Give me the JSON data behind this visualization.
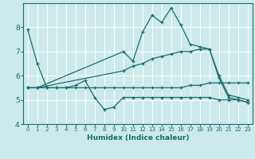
{
  "xlabel": "Humidex (Indice chaleur)",
  "xlim": [
    -0.5,
    23.5
  ],
  "ylim": [
    4,
    9
  ],
  "yticks": [
    4,
    5,
    6,
    7,
    8
  ],
  "xticks": [
    0,
    1,
    2,
    3,
    4,
    5,
    6,
    7,
    8,
    9,
    10,
    11,
    12,
    13,
    14,
    15,
    16,
    17,
    18,
    19,
    20,
    21,
    22,
    23
  ],
  "bg_color": "#cceaea",
  "line_color": "#1a6b6b",
  "grid_color": "#b0d8d8",
  "lines": [
    {
      "x": [
        0,
        1,
        2,
        3,
        4,
        5,
        6,
        7,
        8,
        9,
        10,
        11,
        12,
        13,
        14,
        15,
        16,
        17,
        18,
        19,
        20,
        21,
        22,
        23
      ],
      "y": [
        7.9,
        6.5,
        5.5,
        5.5,
        5.5,
        5.6,
        5.8,
        5.1,
        4.6,
        4.7,
        5.1,
        5.1,
        5.1,
        5.1,
        5.1,
        5.1,
        5.1,
        5.1,
        5.1,
        5.1,
        5.0,
        5.0,
        5.0,
        4.9
      ]
    },
    {
      "x": [
        0,
        1,
        2,
        3,
        4,
        5,
        6,
        7,
        8,
        9,
        10,
        11,
        12,
        13,
        14,
        15,
        16,
        17,
        18,
        19,
        20,
        21,
        22,
        23
      ],
      "y": [
        5.5,
        5.5,
        5.5,
        5.5,
        5.5,
        5.5,
        5.5,
        5.5,
        5.5,
        5.5,
        5.5,
        5.5,
        5.5,
        5.5,
        5.5,
        5.5,
        5.5,
        5.6,
        5.6,
        5.7,
        5.7,
        5.7,
        5.7,
        5.7
      ]
    },
    {
      "x": [
        0,
        1,
        10,
        11,
        12,
        13,
        14,
        15,
        16,
        17,
        18,
        19,
        20,
        21,
        22,
        23
      ],
      "y": [
        5.5,
        5.5,
        7.0,
        6.6,
        7.8,
        8.5,
        8.2,
        8.8,
        8.1,
        7.3,
        7.2,
        7.1,
        6.0,
        5.2,
        5.1,
        5.0
      ]
    },
    {
      "x": [
        0,
        1,
        10,
        11,
        12,
        13,
        14,
        15,
        16,
        17,
        18,
        19,
        20,
        21,
        22,
        23
      ],
      "y": [
        5.5,
        5.5,
        6.2,
        6.4,
        6.5,
        6.7,
        6.8,
        6.9,
        7.0,
        7.0,
        7.1,
        7.1,
        5.9,
        5.1,
        5.0,
        4.9
      ]
    }
  ]
}
